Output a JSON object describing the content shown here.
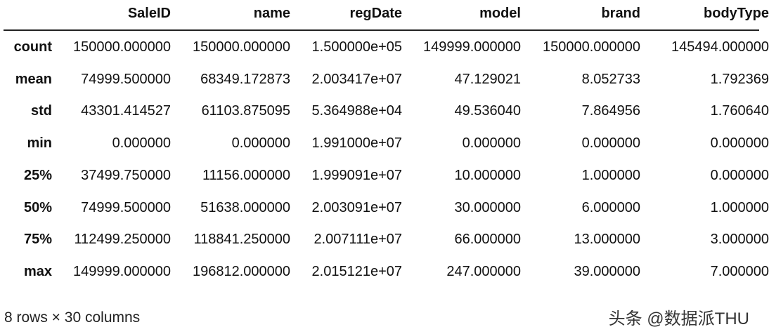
{
  "table": {
    "columns": [
      "SaleID",
      "name",
      "regDate",
      "model",
      "brand",
      "bodyType"
    ],
    "rows": [
      {
        "label": "count",
        "values": [
          "150000.000000",
          "150000.000000",
          "1.500000e+05",
          "149999.000000",
          "150000.000000",
          "145494.000000"
        ]
      },
      {
        "label": "mean",
        "values": [
          "74999.500000",
          "68349.172873",
          "2.003417e+07",
          "47.129021",
          "8.052733",
          "1.792369"
        ]
      },
      {
        "label": "std",
        "values": [
          "43301.414527",
          "61103.875095",
          "5.364988e+04",
          "49.536040",
          "7.864956",
          "1.760640"
        ]
      },
      {
        "label": "min",
        "values": [
          "0.000000",
          "0.000000",
          "1.991000e+07",
          "0.000000",
          "0.000000",
          "0.000000"
        ]
      },
      {
        "label": "25%",
        "values": [
          "37499.750000",
          "11156.000000",
          "1.999091e+07",
          "10.000000",
          "1.000000",
          "0.000000"
        ]
      },
      {
        "label": "50%",
        "values": [
          "74999.500000",
          "51638.000000",
          "2.003091e+07",
          "30.000000",
          "6.000000",
          "1.000000"
        ]
      },
      {
        "label": "75%",
        "values": [
          "112499.250000",
          "118841.250000",
          "2.007111e+07",
          "66.000000",
          "13.000000",
          "3.000000"
        ]
      },
      {
        "label": "max",
        "values": [
          "149999.000000",
          "196812.000000",
          "2.015121e+07",
          "247.000000",
          "39.000000",
          "7.000000"
        ]
      }
    ]
  },
  "footer": "8 rows × 30 columns",
  "watermark": "头条 @数据派THU"
}
